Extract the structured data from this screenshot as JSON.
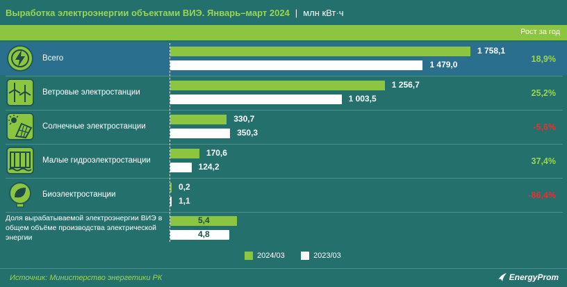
{
  "header": {
    "title": "Выработка электроэнергии объектами ВИЭ. Январь–март 2024",
    "separator": "|",
    "unit": "млн кВт·ч",
    "band_label": "Рост за год"
  },
  "chart_data": {
    "type": "bar",
    "orientation": "horizontal",
    "categories": [
      "Всего",
      "Ветровые электростанции",
      "Солнечные электростанции",
      "Малые гидроэлектростанции",
      "Биоэлектростанции",
      "Доля вырабатываемой электроэнергии ВИЭ в общем объёме производства электрической энергии"
    ],
    "series": [
      {
        "name": "2024/03",
        "color": "#8cc53f",
        "values": [
          1758.1,
          1256.7,
          330.7,
          170.6,
          0.2,
          5.4
        ],
        "labels": [
          "1 758,1",
          "1 256,7",
          "330,7",
          "170,6",
          "0,2",
          "5,4"
        ]
      },
      {
        "name": "2023/03",
        "color": "#ffffff",
        "values": [
          1479.0,
          1003.5,
          350.3,
          124.2,
          1.1,
          4.8
        ],
        "labels": [
          "1 479,0",
          "1 003,5",
          "350,3",
          "124,2",
          "1,1",
          "4,8"
        ]
      }
    ],
    "growth": [
      "18,9%",
      "25,2%",
      "-5,6%",
      "37,4%",
      "-86,4%"
    ],
    "growth_colors": {
      "positive": "#9bd64f",
      "negative": "#e8312f"
    },
    "xlim": [
      0,
      1800
    ],
    "icons": [
      "lightning-icon",
      "wind-turbine-icon",
      "solar-panel-icon",
      "hydro-dam-icon",
      "bio-leaf-bulb-icon"
    ]
  },
  "legend": {
    "current": "2024/03",
    "previous": "2023/03"
  },
  "footer": {
    "source": "Источник: Министерство энергетики РК",
    "logo_text": "EnergyProm"
  },
  "colors": {
    "background": "#23706d",
    "highlight_row": "#2a6f8e",
    "accent": "#8cc53f"
  }
}
